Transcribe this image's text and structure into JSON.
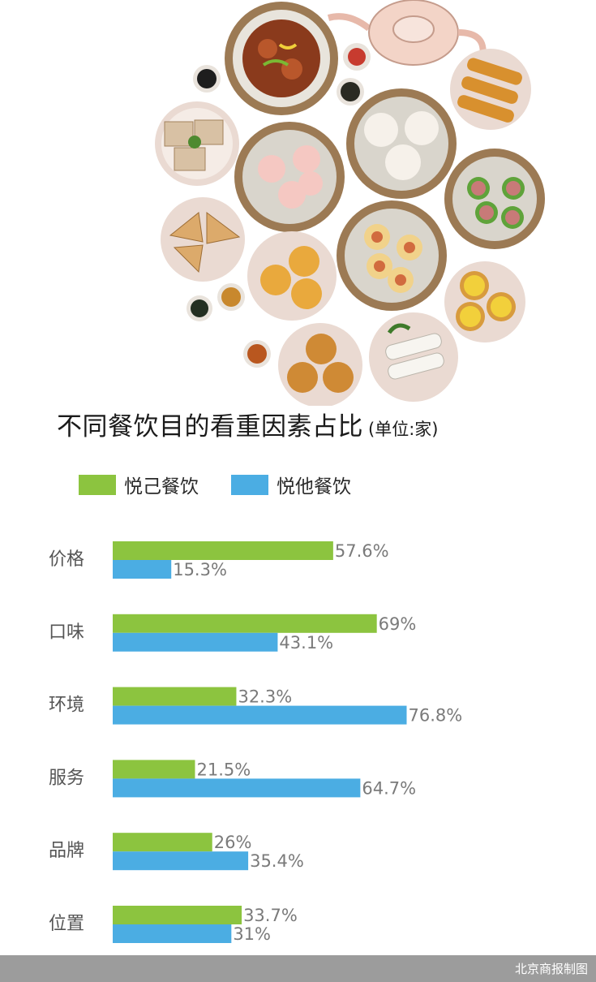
{
  "colors": {
    "self": "#8cc43f",
    "others": "#4bade3",
    "footer": "#9c9c9c"
  },
  "chart_data": {
    "type": "bar",
    "orientation": "horizontal",
    "title": "不同餐饮目的看重因素占比",
    "unit_note": "(单位:家)",
    "categories": [
      "价格",
      "口味",
      "环境",
      "服务",
      "品牌",
      "位置"
    ],
    "series": [
      {
        "name": "悦己餐饮",
        "color": "#8cc43f",
        "values": [
          57.6,
          69,
          32.3,
          21.5,
          26,
          33.7
        ],
        "labels": [
          "57.6%",
          "69%",
          "32.3%",
          "21.5%",
          "26%",
          "33.7%"
        ]
      },
      {
        "name": "悦他餐饮",
        "color": "#4bade3",
        "values": [
          15.3,
          43.1,
          76.8,
          64.7,
          35.4,
          31
        ],
        "labels": [
          "15.3%",
          "43.1%",
          "76.8%",
          "64.7%",
          "35.4%",
          "31%"
        ]
      }
    ],
    "xlim": [
      0,
      100
    ],
    "grid": false,
    "legend_position": "top-left"
  },
  "footer": {
    "credit": "北京商报制图"
  }
}
